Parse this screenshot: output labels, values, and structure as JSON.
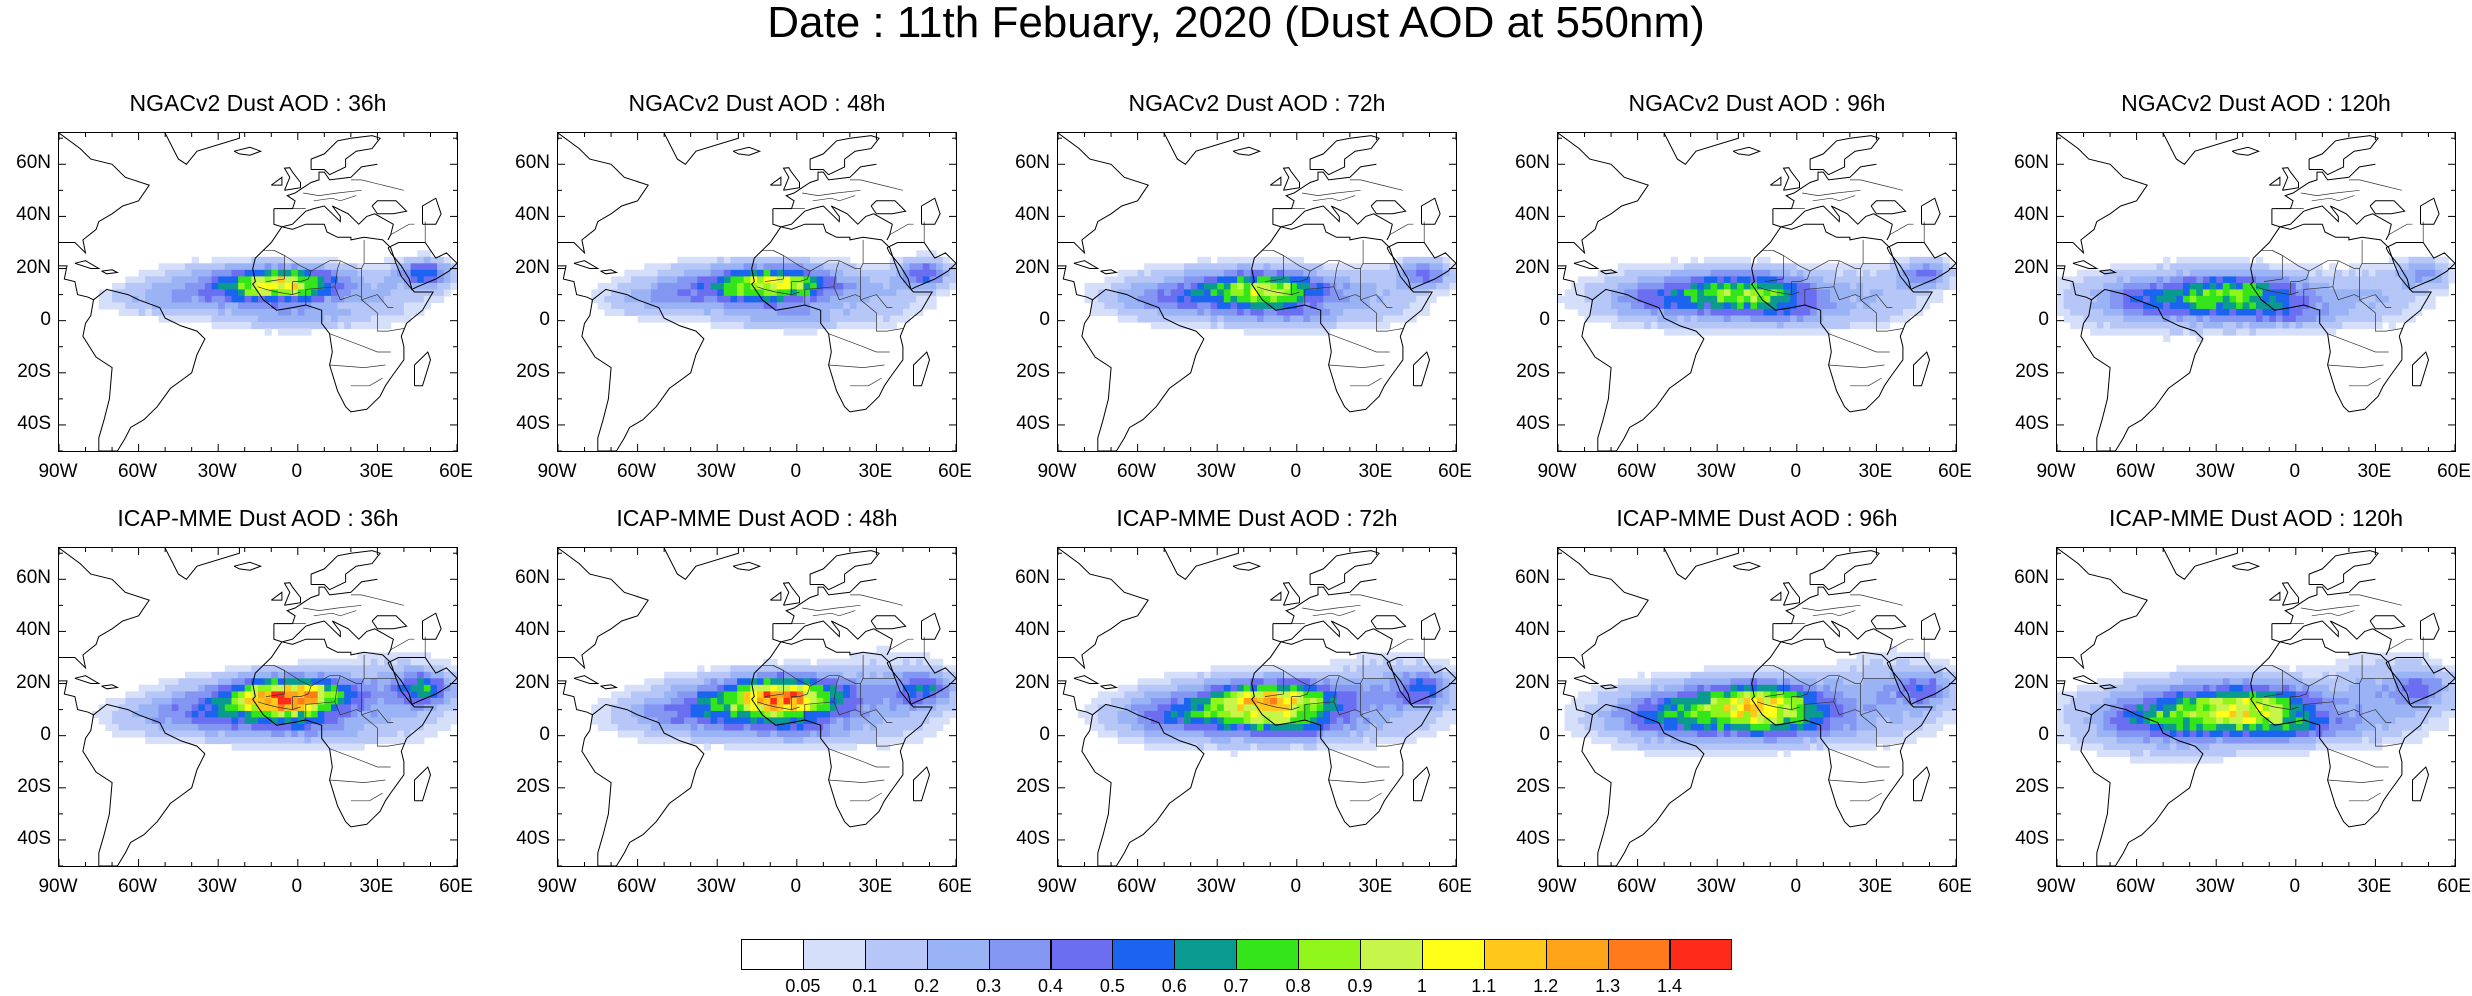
{
  "page": {
    "title": "Date : 11th Febuary, 2020 (Dust AOD at 550nm)"
  },
  "panels": [
    {
      "title": "NGACv2 Dust AOD : 36h",
      "model": "ngac",
      "lead": 36
    },
    {
      "title": "NGACv2 Dust AOD : 48h",
      "model": "ngac",
      "lead": 48
    },
    {
      "title": "NGACv2 Dust AOD : 72h",
      "model": "ngac",
      "lead": 72
    },
    {
      "title": "NGACv2 Dust AOD : 96h",
      "model": "ngac",
      "lead": 96
    },
    {
      "title": "NGACv2 Dust AOD : 120h",
      "model": "ngac",
      "lead": 120
    },
    {
      "title": "ICAP-MME Dust AOD : 36h",
      "model": "icap",
      "lead": 36
    },
    {
      "title": "ICAP-MME Dust AOD : 48h",
      "model": "icap",
      "lead": 48
    },
    {
      "title": "ICAP-MME Dust AOD : 72h",
      "model": "icap",
      "lead": 72
    },
    {
      "title": "ICAP-MME Dust AOD : 96h",
      "model": "icap",
      "lead": 96
    },
    {
      "title": "ICAP-MME Dust AOD : 120h",
      "model": "icap",
      "lead": 120
    }
  ],
  "axes": {
    "lat_labels": [
      "60N",
      "40N",
      "20N",
      "0",
      "20S",
      "40S"
    ],
    "lon_labels": [
      "90W",
      "60W",
      "30W",
      "0",
      "30E",
      "60E"
    ],
    "lat_values": [
      60,
      40,
      20,
      0,
      -20,
      -40
    ],
    "lon_values": [
      -90,
      -60,
      -30,
      0,
      30,
      60
    ],
    "lat_range": [
      -50,
      72
    ],
    "lon_range": [
      -90,
      60
    ]
  },
  "colorbar": {
    "labels": [
      "0.05",
      "0.1",
      "0.2",
      "0.3",
      "0.4",
      "0.5",
      "0.6",
      "0.7",
      "0.8",
      "0.9",
      "1",
      "1.1",
      "1.2",
      "1.3",
      "1.4"
    ],
    "colors": [
      "#ffffff",
      "#d6dff9",
      "#b5c6f7",
      "#99b3f5",
      "#8396f2",
      "#6b6ef0",
      "#1a64f0",
      "#0a9a8f",
      "#33e51a",
      "#8ff51a",
      "#c8f54a",
      "#ffff1a",
      "#ffc81a",
      "#ffa319",
      "#ff7a1a",
      "#ff2b1a"
    ]
  }
}
